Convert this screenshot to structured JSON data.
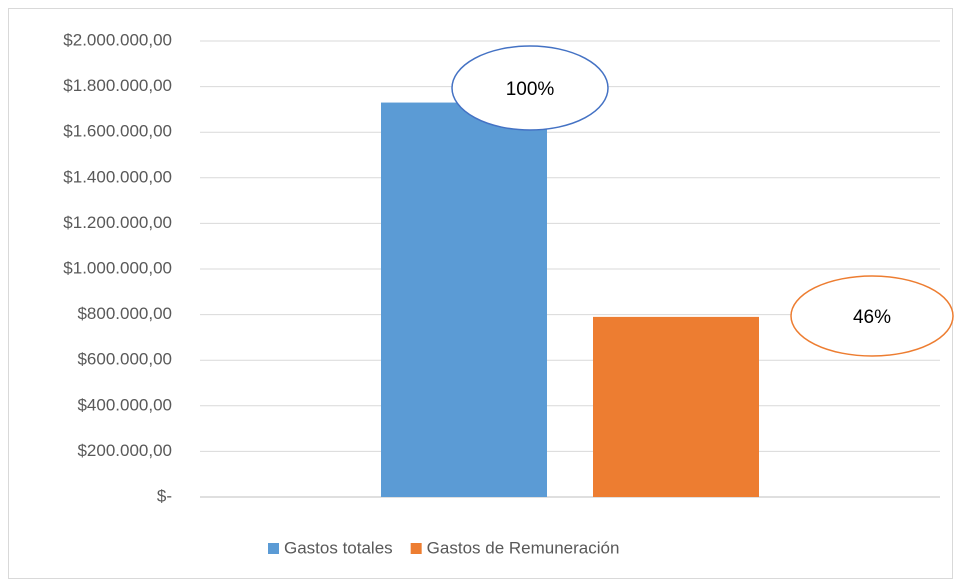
{
  "chart_data": {
    "type": "bar",
    "categories": [
      null
    ],
    "series": [
      {
        "name": "Gastos totales",
        "color": "#5b9bd5",
        "values": [
          1730000
        ]
      },
      {
        "name": "Gastos de Remuneración",
        "color": "#ed7d31",
        "values": [
          790000
        ]
      }
    ],
    "ylim": [
      0,
      2000000
    ],
    "yticks": [
      {
        "value": 0,
        "label": "$-"
      },
      {
        "value": 200000,
        "label": "$200.000,00"
      },
      {
        "value": 400000,
        "label": "$400.000,00"
      },
      {
        "value": 600000,
        "label": "$600.000,00"
      },
      {
        "value": 800000,
        "label": "$800.000,00"
      },
      {
        "value": 1000000,
        "label": "$1.000.000,00"
      },
      {
        "value": 1200000,
        "label": "$1.200.000,00"
      },
      {
        "value": 1400000,
        "label": "$1.400.000,00"
      },
      {
        "value": 1600000,
        "label": "$1.600.000,00"
      },
      {
        "value": 1800000,
        "label": "$1.800.000,00"
      },
      {
        "value": 2000000,
        "label": "$2.000.000,00"
      }
    ],
    "grid": true,
    "legend": "bottom",
    "annotations": [
      "100%",
      "46%"
    ]
  }
}
